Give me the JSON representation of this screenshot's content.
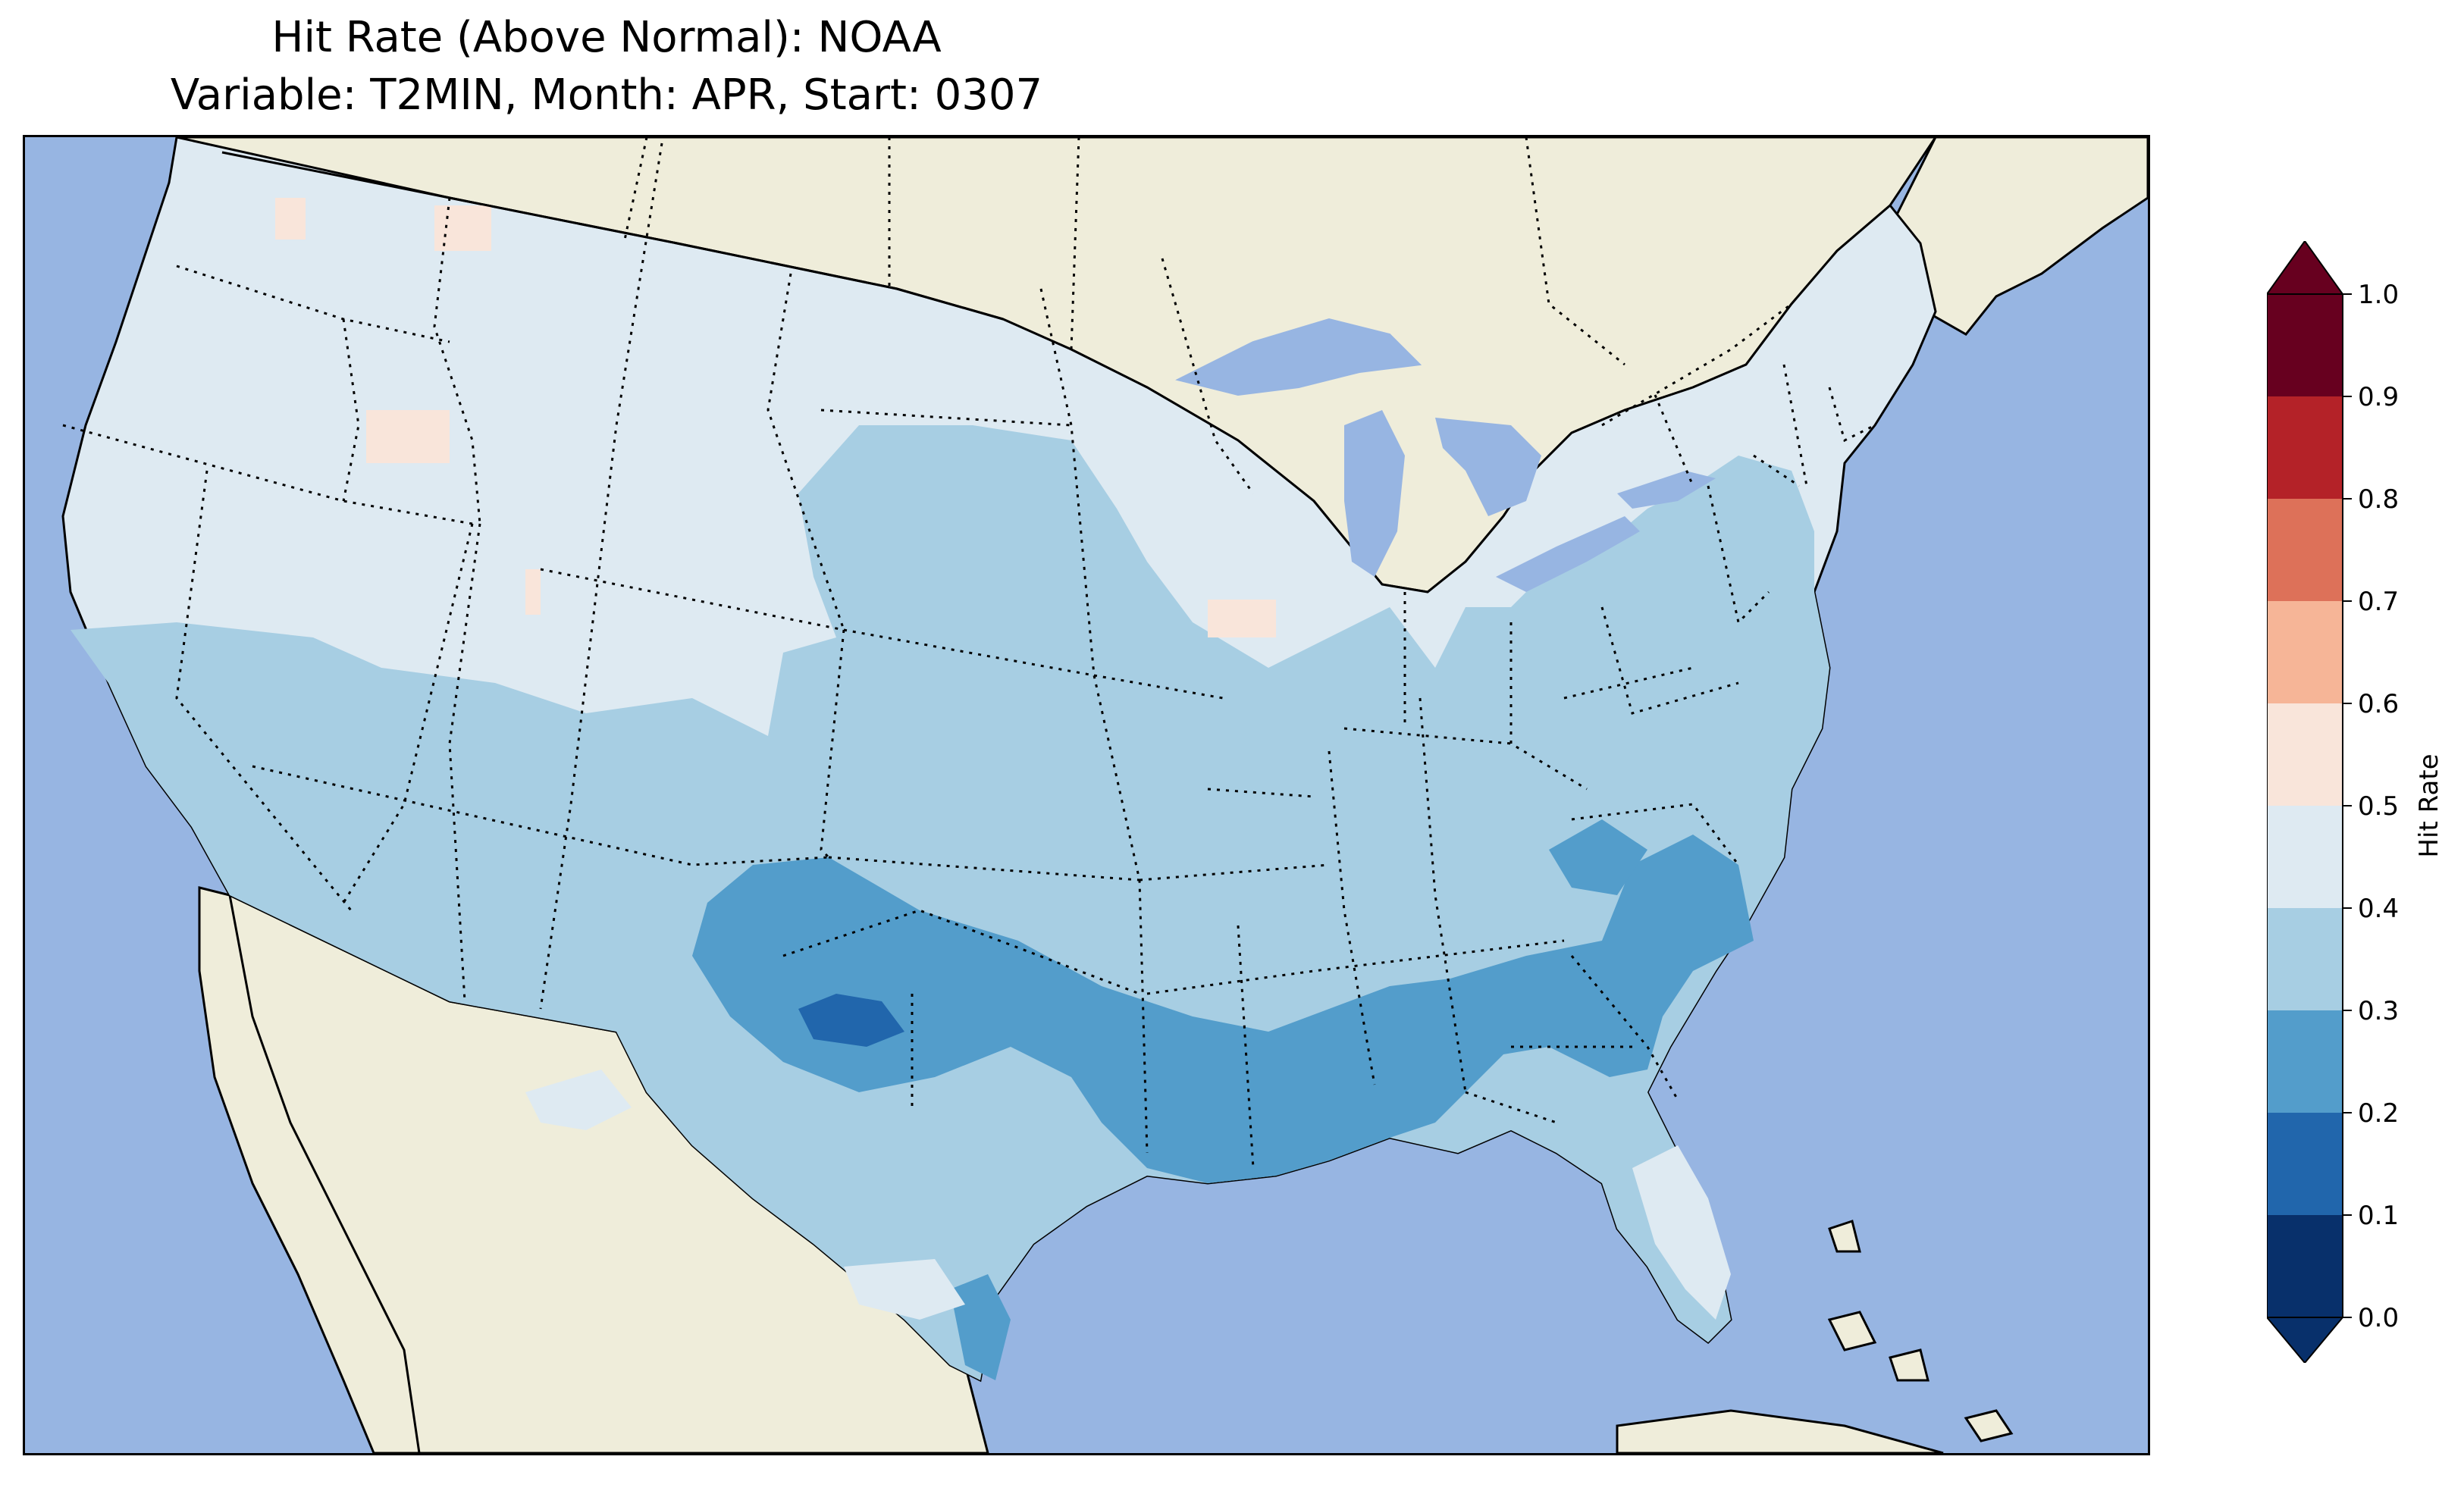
{
  "title": {
    "line1": "Hit Rate (Above Normal): NOAA",
    "line2": "Variable: T2MIN, Month: APR, Start: 0307"
  },
  "map": {
    "projection": "Lambert Conformal (CONUS)",
    "ocean_color": "#97b5e2",
    "land_color": "#efedda",
    "coastline_color": "#000000",
    "border_style": "dotted"
  },
  "colorbar": {
    "label": "Hit Rate",
    "ticks": [
      "0.0",
      "0.1",
      "0.2",
      "0.3",
      "0.4",
      "0.5",
      "0.6",
      "0.7",
      "0.8",
      "0.9",
      "1.0"
    ],
    "bins": [
      {
        "range": [
          0.0,
          0.1
        ],
        "color": "#08306b"
      },
      {
        "range": [
          0.1,
          0.2
        ],
        "color": "#2166ac"
      },
      {
        "range": [
          0.2,
          0.3
        ],
        "color": "#539dcb"
      },
      {
        "range": [
          0.3,
          0.4
        ],
        "color": "#a7cee3"
      },
      {
        "range": [
          0.4,
          0.5
        ],
        "color": "#deeaf2"
      },
      {
        "range": [
          0.5,
          0.6
        ],
        "color": "#f9e5da"
      },
      {
        "range": [
          0.6,
          0.7
        ],
        "color": "#f6b597"
      },
      {
        "range": [
          0.7,
          0.8
        ],
        "color": "#dd7159"
      },
      {
        "range": [
          0.8,
          0.9
        ],
        "color": "#b42228"
      },
      {
        "range": [
          0.9,
          1.0
        ],
        "color": "#67001f"
      }
    ],
    "extend": "both"
  },
  "regions": [
    {
      "name": "northern-tier",
      "hit_rate_bin": "0.4-0.5"
    },
    {
      "name": "southwest-central",
      "hit_rate_bin": "0.3-0.4"
    },
    {
      "name": "southern-plains",
      "hit_rate_bin": "0.2-0.3"
    },
    {
      "name": "texas-core",
      "hit_rate_bin": "0.1-0.2"
    },
    {
      "name": "florida",
      "hit_rate_bin": "0.4-0.5"
    },
    {
      "name": "idaho-spots",
      "hit_rate_bin": "0.5-0.6"
    }
  ]
}
